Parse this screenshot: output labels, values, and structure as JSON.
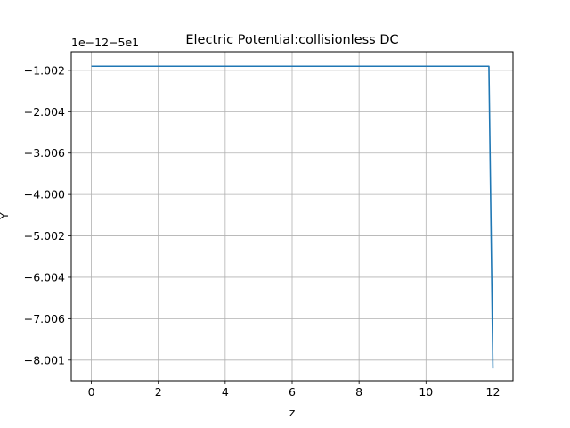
{
  "chart_data": {
    "type": "line",
    "title": "Electric Potential:collisionless DC",
    "xlabel": "z",
    "ylabel": "Y",
    "y_offset_text": "1e−12−5e1",
    "xlim": [
      -0.6,
      12.6
    ],
    "xticks": [
      0,
      2,
      4,
      6,
      8,
      10,
      12
    ],
    "xtick_labels": [
      "0",
      "2",
      "4",
      "6",
      "8",
      "10",
      "12"
    ],
    "ylim": [
      -8.5,
      -0.55
    ],
    "yticks": [
      -1,
      -2,
      -3,
      -4,
      -5,
      -6,
      -7,
      -8
    ],
    "ytick_labels": [
      "−1.002",
      "−2.004",
      "−3.006",
      "−4.000",
      "−5.002",
      "−6.004",
      "−7.006",
      "−8.001"
    ],
    "grid": true,
    "series": [
      {
        "color": "#1f77b4",
        "x": [
          0,
          11.88,
          12.0
        ],
        "y": [
          -0.9,
          -0.9,
          -8.2
        ]
      }
    ]
  }
}
